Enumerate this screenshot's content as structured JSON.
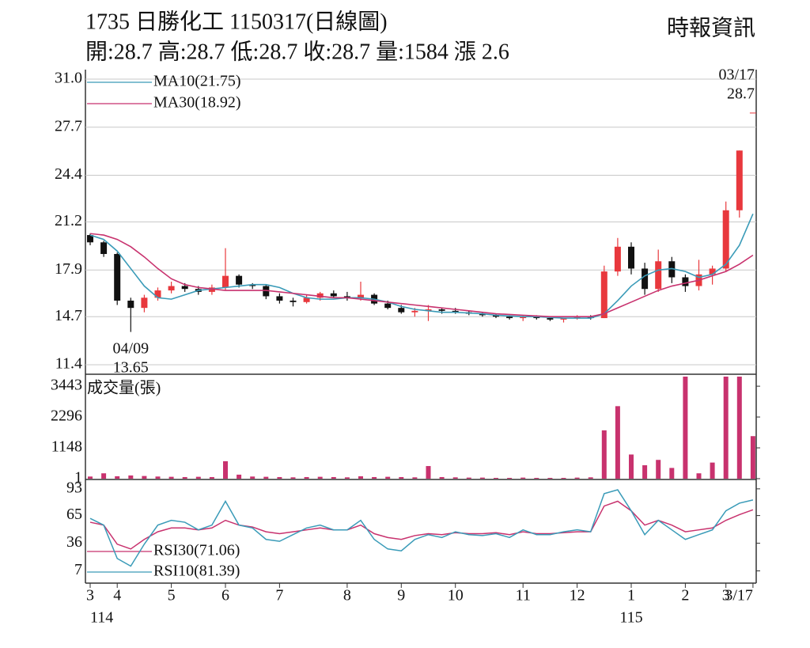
{
  "header": {
    "title": "1735  日勝化工 1150317(日線圖)",
    "quote": "開:28.7 高:28.7 低:28.7 收:28.7 量:1584 漲 2.6",
    "source": "時報資訊"
  },
  "chart_data": [
    {
      "type": "candlestick",
      "categories": [
        "3",
        null,
        "4",
        null,
        null,
        null,
        "5",
        null,
        null,
        null,
        "6",
        null,
        null,
        null,
        "7",
        null,
        null,
        null,
        null,
        "8",
        null,
        null,
        null,
        "9",
        null,
        null,
        null,
        "10",
        null,
        null,
        null,
        null,
        "11",
        null,
        null,
        null,
        "12",
        null,
        null,
        null,
        "1",
        null,
        null,
        null,
        "2",
        null,
        null,
        "3",
        null,
        "3/17"
      ],
      "years": [
        "114",
        null,
        null,
        null,
        null,
        null,
        null,
        null,
        null,
        null,
        null,
        null,
        null,
        null,
        null,
        null,
        null,
        null,
        null,
        null,
        null,
        null,
        null,
        null,
        null,
        null,
        null,
        null,
        null,
        null,
        null,
        null,
        null,
        null,
        null,
        null,
        null,
        null,
        null,
        null,
        "115",
        null,
        null,
        null,
        null,
        null,
        null,
        null,
        null,
        null
      ],
      "open": [
        20.3,
        19.8,
        19.0,
        15.8,
        15.3,
        16.0,
        16.5,
        16.8,
        16.6,
        16.4,
        16.7,
        17.5,
        16.9,
        16.8,
        16.1,
        15.8,
        15.7,
        16.0,
        16.3,
        16.1,
        16.0,
        16.2,
        15.6,
        15.3,
        15.0,
        15.1,
        15.2,
        15.1,
        15.0,
        14.9,
        14.8,
        14.7,
        14.6,
        14.7,
        14.6,
        14.5,
        14.6,
        14.7,
        14.6,
        17.8,
        19.5,
        18.0,
        16.6,
        18.5,
        17.4,
        16.8,
        17.6,
        18.0,
        22.0,
        28.7
      ],
      "high": [
        20.4,
        19.9,
        19.1,
        16.0,
        16.2,
        16.7,
        17.1,
        17.0,
        16.8,
        16.9,
        19.4,
        17.6,
        17.0,
        16.9,
        16.3,
        16.0,
        16.2,
        16.4,
        16.5,
        16.4,
        17.1,
        16.3,
        15.8,
        15.5,
        15.3,
        15.5,
        15.3,
        15.3,
        15.1,
        15.0,
        14.9,
        14.8,
        14.8,
        14.8,
        14.7,
        14.6,
        14.8,
        14.8,
        18.2,
        20.1,
        19.8,
        18.4,
        19.3,
        18.8,
        17.6,
        18.6,
        18.2,
        22.6,
        26.1,
        28.7
      ],
      "low": [
        19.6,
        18.8,
        15.5,
        13.65,
        15.0,
        15.8,
        16.3,
        16.4,
        16.2,
        16.2,
        16.5,
        16.7,
        16.6,
        15.9,
        15.6,
        15.4,
        15.6,
        15.8,
        16.0,
        15.8,
        15.8,
        15.5,
        15.2,
        14.9,
        14.7,
        14.4,
        14.9,
        14.9,
        14.8,
        14.7,
        14.6,
        14.5,
        14.4,
        14.5,
        14.4,
        14.3,
        14.5,
        14.5,
        14.6,
        17.5,
        17.6,
        16.2,
        16.4,
        17.0,
        16.4,
        16.5,
        16.9,
        17.8,
        21.5,
        28.7
      ],
      "close": [
        19.8,
        19.0,
        15.8,
        15.3,
        16.0,
        16.5,
        16.8,
        16.6,
        16.4,
        16.7,
        17.5,
        16.9,
        16.8,
        16.1,
        15.8,
        15.7,
        16.0,
        16.3,
        16.1,
        16.0,
        16.2,
        15.6,
        15.3,
        15.0,
        15.1,
        15.2,
        15.1,
        15.0,
        14.9,
        14.8,
        14.7,
        14.6,
        14.7,
        14.6,
        14.5,
        14.6,
        14.7,
        14.6,
        17.8,
        19.5,
        18.0,
        16.6,
        18.5,
        17.4,
        16.8,
        17.6,
        18.0,
        22.0,
        26.1,
        28.7
      ],
      "up_color": "#e8383d",
      "down_color": "#111111",
      "series": [
        {
          "name": "MA10(21.75)",
          "color": "#3a9bb8",
          "values": [
            20.3,
            20.0,
            19.2,
            18.0,
            16.8,
            16.0,
            15.9,
            16.2,
            16.5,
            16.6,
            16.7,
            16.8,
            16.9,
            16.9,
            16.7,
            16.3,
            16.0,
            15.9,
            15.9,
            16.0,
            16.0,
            15.9,
            15.7,
            15.4,
            15.2,
            15.1,
            15.0,
            15.0,
            14.95,
            14.9,
            14.8,
            14.75,
            14.7,
            14.7,
            14.65,
            14.6,
            14.6,
            14.6,
            14.9,
            15.8,
            16.8,
            17.5,
            17.9,
            18.0,
            17.8,
            17.4,
            17.6,
            18.3,
            19.6,
            21.75
          ]
        },
        {
          "name": "MA30(18.92)",
          "color": "#c8326e",
          "values": [
            20.4,
            20.3,
            20.0,
            19.5,
            18.8,
            18.0,
            17.3,
            16.9,
            16.7,
            16.6,
            16.5,
            16.5,
            16.5,
            16.5,
            16.4,
            16.3,
            16.2,
            16.1,
            16.0,
            16.0,
            15.9,
            15.8,
            15.7,
            15.6,
            15.5,
            15.4,
            15.3,
            15.2,
            15.1,
            15.0,
            14.9,
            14.85,
            14.8,
            14.75,
            14.7,
            14.7,
            14.7,
            14.7,
            14.9,
            15.3,
            15.7,
            16.1,
            16.5,
            16.8,
            17.0,
            17.2,
            17.5,
            17.8,
            18.3,
            18.92
          ]
        }
      ],
      "ylim": [
        11.4,
        31.0
      ],
      "yticks": [
        {
          "value": 31.0,
          "label": "31.0"
        },
        27.7,
        24.4,
        21.2,
        17.9,
        14.7,
        11.4
      ],
      "grid": true,
      "low_marker": {
        "date": "04/09",
        "value": 13.65
      },
      "last_marker": {
        "date": "03/17",
        "value": 28.7
      }
    },
    {
      "type": "bar",
      "title": "成交量(張)",
      "color": "#c8326e",
      "values": [
        80,
        200,
        90,
        120,
        100,
        80,
        70,
        60,
        70,
        60,
        650,
        150,
        80,
        70,
        60,
        50,
        60,
        70,
        60,
        50,
        90,
        60,
        70,
        60,
        50,
        470,
        60,
        50,
        40,
        40,
        30,
        30,
        40,
        30,
        30,
        30,
        40,
        50,
        1800,
        2700,
        900,
        500,
        700,
        400,
        3800,
        200,
        600,
        3800,
        3800,
        1584
      ],
      "ylim": [
        0,
        3800
      ],
      "yticks": [
        1,
        1148,
        2296,
        3443
      ]
    },
    {
      "type": "line",
      "series": [
        {
          "name": "RSI30(71.06)",
          "color": "#c8326e",
          "values": [
            58,
            55,
            35,
            30,
            40,
            48,
            52,
            52,
            50,
            52,
            60,
            55,
            53,
            48,
            46,
            48,
            50,
            52,
            50,
            50,
            55,
            46,
            42,
            40,
            44,
            46,
            45,
            47,
            46,
            46,
            47,
            45,
            48,
            46,
            46,
            47,
            48,
            48,
            75,
            80,
            70,
            55,
            60,
            55,
            48,
            50,
            52,
            60,
            66,
            71.06
          ]
        },
        {
          "name": "RSI10(81.39)",
          "color": "#3a9bb8",
          "values": [
            62,
            55,
            20,
            12,
            35,
            55,
            60,
            58,
            50,
            55,
            80,
            55,
            52,
            40,
            38,
            45,
            52,
            55,
            50,
            50,
            60,
            40,
            30,
            28,
            40,
            45,
            42,
            48,
            45,
            44,
            46,
            42,
            50,
            45,
            45,
            48,
            50,
            48,
            88,
            92,
            70,
            45,
            60,
            50,
            40,
            45,
            50,
            70,
            78,
            81.39
          ]
        }
      ],
      "ylim": [
        -5,
        102
      ],
      "yticks": [
        93,
        65,
        36,
        7
      ]
    }
  ]
}
